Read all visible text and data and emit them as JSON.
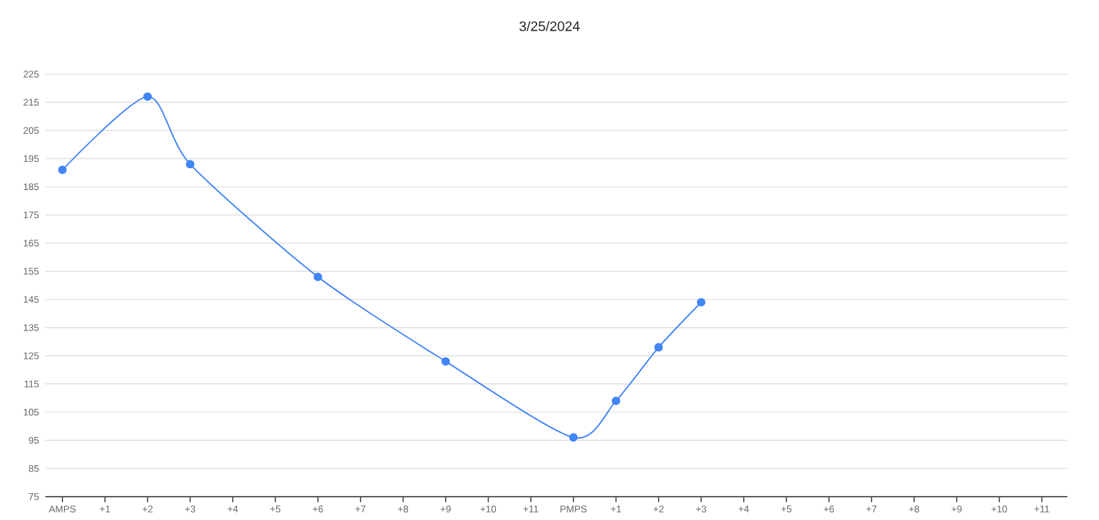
{
  "chart_data": {
    "type": "line",
    "title": "3/25/2024",
    "categories": [
      "AMPS",
      "+1",
      "+2",
      "+3",
      "+4",
      "+5",
      "+6",
      "+7",
      "+8",
      "+9",
      "+10",
      "+11",
      "PMPS",
      "+1",
      "+2",
      "+3",
      "+4",
      "+5",
      "+6",
      "+7",
      "+8",
      "+9",
      "+10",
      "+11"
    ],
    "series": [
      {
        "color": "#4285f4",
        "values": [
          191,
          null,
          217,
          193,
          null,
          null,
          153,
          null,
          null,
          123,
          null,
          null,
          96,
          109,
          128,
          144,
          null,
          null,
          null,
          null,
          null,
          null,
          null,
          null
        ]
      }
    ],
    "ylim": [
      75,
      225
    ],
    "yticks": [
      75,
      85,
      95,
      105,
      115,
      125,
      135,
      145,
      155,
      165,
      175,
      185,
      195,
      205,
      215,
      225
    ],
    "grid": "y",
    "marker": "circle",
    "line_style": "solid"
  }
}
